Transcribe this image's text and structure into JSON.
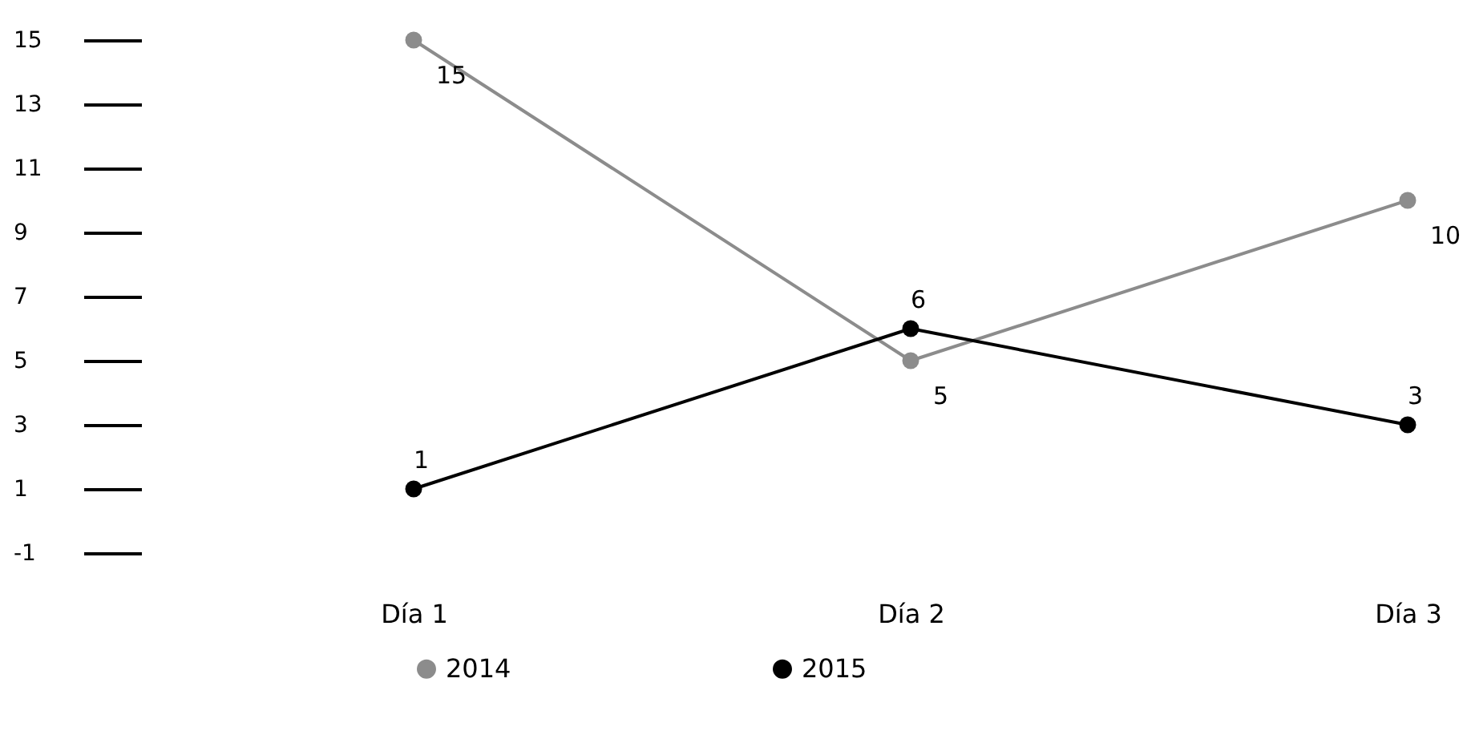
{
  "chart_data": {
    "type": "line",
    "categories": [
      "Día 1",
      "Día 2",
      "Día 3"
    ],
    "series": [
      {
        "name": "2014",
        "color": "#8c8c8c",
        "values": [
          15,
          5,
          10
        ]
      },
      {
        "name": "2015",
        "color": "#000000",
        "values": [
          1,
          6,
          3
        ]
      }
    ],
    "ylim": [
      -1,
      15
    ],
    "yticks": [
      -1,
      1,
      3,
      5,
      7,
      9,
      11,
      13,
      15
    ],
    "data_labels": true,
    "legend": "bottom",
    "marker": "circle",
    "grid": false
  }
}
